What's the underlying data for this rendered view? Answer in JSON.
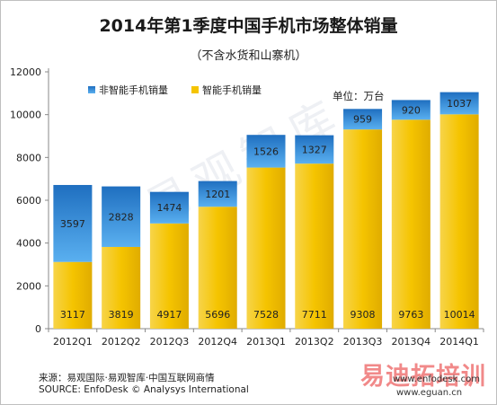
{
  "chart_data": {
    "type": "bar",
    "stacked": true,
    "title": "2014年第1季度中国手机市场整体销量",
    "subtitle": "（不含水货和山寨机）",
    "unit_label": "单位：万台",
    "categories": [
      "2012Q1",
      "2012Q2",
      "2012Q3",
      "2012Q4",
      "2013Q1",
      "2013Q2",
      "2013Q3",
      "2013Q4",
      "2014Q1"
    ],
    "series": [
      {
        "name": "智能手机销量",
        "color": "#f5c400",
        "values": [
          3117,
          3819,
          4917,
          5696,
          7528,
          7711,
          9308,
          9763,
          10014
        ]
      },
      {
        "name": "非智能手机销量",
        "color": "#2f8fdc",
        "values": [
          3597,
          2828,
          1474,
          1201,
          1526,
          1327,
          959,
          920,
          1037
        ]
      }
    ],
    "ylim": [
      0,
      12000
    ],
    "yticks": [
      0,
      2000,
      4000,
      6000,
      8000,
      10000,
      12000
    ],
    "legend_position": "top-left",
    "grid": false
  },
  "footer": {
    "source_cn": "来源：易观国际·易观智库·中国互联网商情",
    "source_en": "SOURCE: EnfoDesk © Analysys International"
  },
  "watermark": {
    "url1": "www.enfodesk.com",
    "url2": "www.eguan.cn",
    "brand": "易迪拓培训",
    "background_text": "易观智库"
  }
}
